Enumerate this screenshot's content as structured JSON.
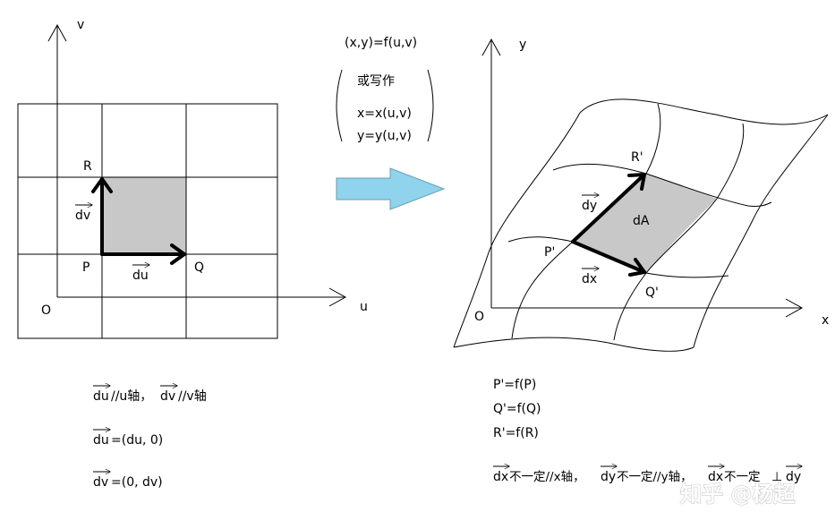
{
  "left": {
    "axis_v": "v",
    "axis_u": "u",
    "origin": "O",
    "point_r": "R",
    "point_p": "P",
    "point_q": "Q",
    "vec_dv": "dv",
    "vec_du": "du"
  },
  "middle": {
    "mapping": "(x,y)=f(u,v)",
    "or_write": "或写作",
    "eq_x": "x=x(u,v)",
    "eq_y": "y=y(u,v)",
    "arrow_color": "#8fd3ec"
  },
  "right": {
    "axis_y": "y",
    "axis_x": "x",
    "origin": "O",
    "point_r": "R'",
    "point_p": "P'",
    "point_q": "Q'",
    "vec_dy": "dy",
    "vec_dx": "dx",
    "area": "dA"
  },
  "notes_left": {
    "line1_du": "du",
    "line1_a": "//u轴，",
    "line1_dv": "dv",
    "line1_b": "//v轴",
    "line2_du": "du",
    "line2_b": "=(du, 0)",
    "line3_dv": "dv",
    "line3_b": "=(0, dv)"
  },
  "notes_right": {
    "line1": "P'=f(P)",
    "line2": "Q'=f(Q)",
    "line3": "R'=f(R)",
    "line4_dx": "dx",
    "line4_a": "不一定//x轴，",
    "line4_dy": "dy",
    "line4_b": "不一定//y轴，",
    "line4_dx2": "dx",
    "line4_c": "不一定",
    "line4_perp": "⊥",
    "line4_dy2": "dy"
  },
  "watermark": "知乎 @杨超",
  "colors": {
    "shade": "#c8c8c8",
    "line": "#000000"
  }
}
